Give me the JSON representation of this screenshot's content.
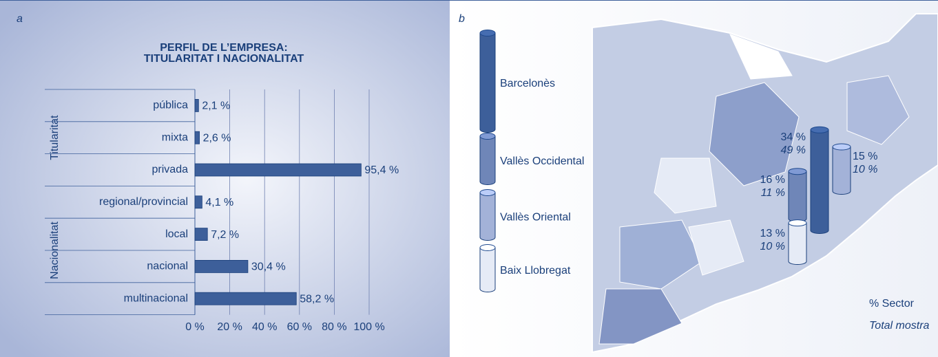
{
  "chart_data": [
    {
      "type": "bar",
      "panel": "a",
      "title": [
        "PERFIL DE L’EMPRESA:",
        "TITULARITAT I NACIONALITAT"
      ],
      "groups": [
        {
          "name": "Titularitat",
          "count": 3
        },
        {
          "name": "Nacionalitat",
          "count": 4
        }
      ],
      "categories": [
        "pública",
        "mixta",
        "privada",
        "regional/provincial",
        "local",
        "nacional",
        "multinacional"
      ],
      "values": [
        2.1,
        2.6,
        95.4,
        4.1,
        7.2,
        30.4,
        58.2
      ],
      "value_labels": [
        "2,1 %",
        "2,6 %",
        "95,4 %",
        "4,1 %",
        "7,2 %",
        "30,4 %",
        "58,2 %"
      ],
      "color": "#3d5f9a",
      "xlim": [
        0,
        100
      ],
      "xticks": [
        {
          "value": 0,
          "label": "0 %"
        },
        {
          "value": 20,
          "label": "20 %"
        },
        {
          "value": 40,
          "label": "40 %"
        },
        {
          "value": 60,
          "label": "60 %"
        },
        {
          "value": 80,
          "label": "80 %"
        },
        {
          "value": 100,
          "label": "100 %"
        }
      ],
      "grid": true
    },
    {
      "type": "cylinder",
      "panel": "b",
      "legend_labels": [
        "% Sector",
        "Total mostra"
      ],
      "series": [
        {
          "name": "Barcelonès",
          "color": "#3d5f9a",
          "sector": 34,
          "sector_label": "34 %",
          "total": 49,
          "total_label": "49 %"
        },
        {
          "name": "Vallès Occidental",
          "color": "#6f86b8",
          "sector": 16,
          "sector_label": "16 %",
          "total": 11,
          "total_label": "11 %"
        },
        {
          "name": "Vallès Oriental",
          "color": "#a3b2d8",
          "sector": 15,
          "sector_label": "15 %",
          "total": 10,
          "total_label": "10 %"
        },
        {
          "name": "Baix Llobregat",
          "color": "#e6ebf6",
          "sector": 13,
          "sector_label": "13 %",
          "total": 10,
          "total_label": "10 %"
        }
      ]
    }
  ]
}
